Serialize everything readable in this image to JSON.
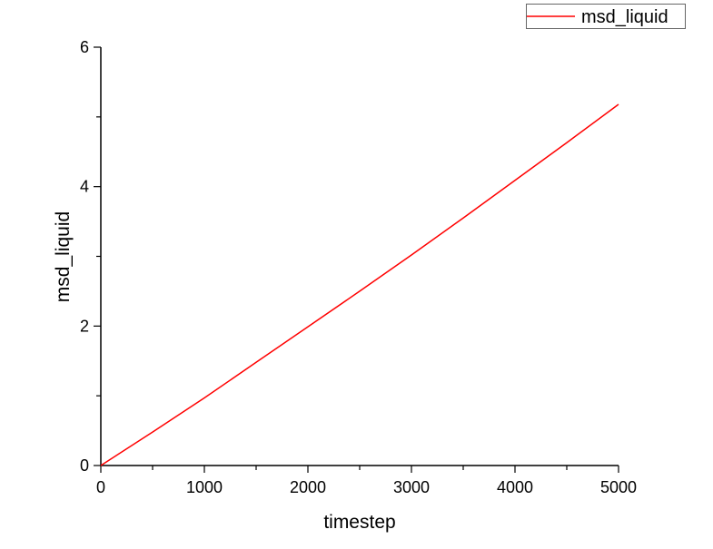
{
  "chart_data": {
    "type": "line",
    "title": "",
    "xlabel": "timestep",
    "ylabel": "msd_liquid",
    "xlim": [
      0,
      5000
    ],
    "ylim": [
      0,
      6
    ],
    "xticks": [
      0,
      1000,
      2000,
      3000,
      4000,
      5000
    ],
    "yticks": [
      0,
      2,
      4,
      6
    ],
    "grid": false,
    "legend": "top-right",
    "series": [
      {
        "name": "msd_liquid",
        "color": "#ff0000",
        "x": [
          0,
          500,
          1000,
          1500,
          2000,
          2500,
          3000,
          3500,
          4000,
          4500,
          5000
        ],
        "y": [
          0,
          0.48,
          0.97,
          1.48,
          1.99,
          2.5,
          3.02,
          3.55,
          4.09,
          4.63,
          5.18
        ]
      }
    ]
  }
}
